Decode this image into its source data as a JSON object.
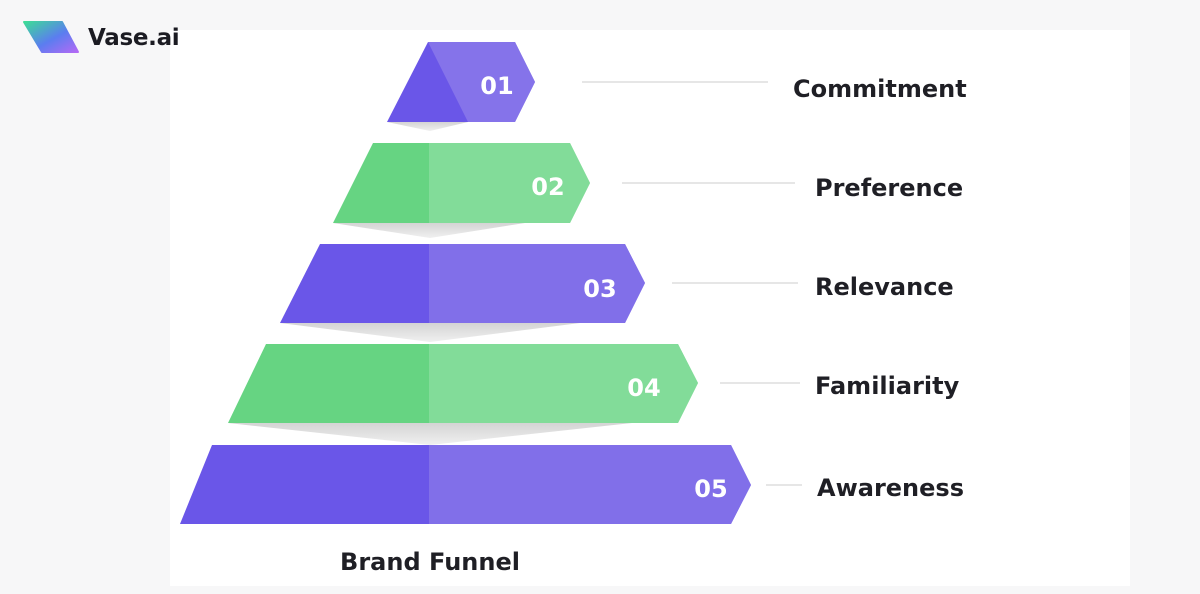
{
  "brand": {
    "name": "Vase.ai",
    "logo_icon": "vase-logo-icon",
    "logo_colors": [
      "#3ddc97",
      "#6a5cf0",
      "#b36af5"
    ]
  },
  "diagram": {
    "caption": "Brand Funnel",
    "colors": {
      "purple": "#6a56e8",
      "purple_light": "#8a78ea",
      "green": "#66d482",
      "green_light": "#8ee0a2",
      "shadow": "#dcdcdc",
      "connector": "#e6e6e6"
    },
    "levels": [
      {
        "number": "01",
        "label": "Commitment",
        "color": "purple"
      },
      {
        "number": "02",
        "label": "Preference",
        "color": "green"
      },
      {
        "number": "03",
        "label": "Relevance",
        "color": "purple"
      },
      {
        "number": "04",
        "label": "Familiarity",
        "color": "green"
      },
      {
        "number": "05",
        "label": "Awareness",
        "color": "purple"
      }
    ]
  }
}
